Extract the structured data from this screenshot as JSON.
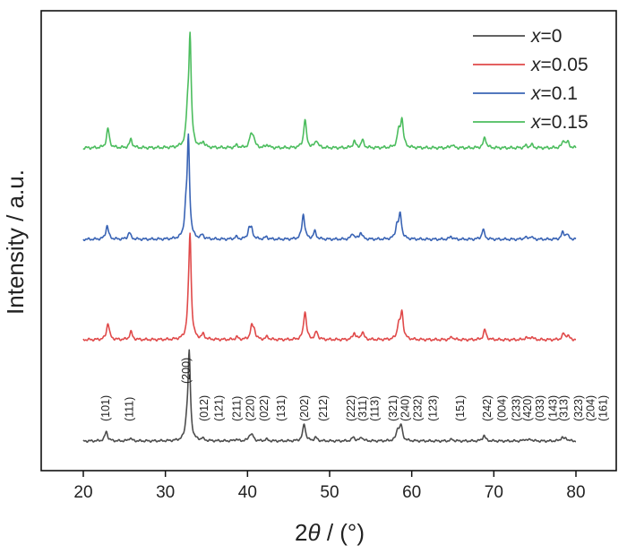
{
  "chart_data": {
    "type": "line",
    "xlabel": "2θ / (°)",
    "ylabel": "Intensity / a.u.",
    "xlim": [
      15,
      82
    ],
    "xticks": [
      20,
      30,
      40,
      50,
      60,
      70,
      80
    ],
    "x_tick_labels": [
      "20",
      "30",
      "40",
      "50",
      "60",
      "70",
      "80"
    ],
    "legend_position": "top-right",
    "grid": false,
    "series": [
      {
        "name": "x=0",
        "legend_var": "x",
        "legend_value": "=0",
        "color": "#4d4d4d",
        "offset": 0,
        "peaks": [
          {
            "x": 22.8,
            "y": 0.11
          },
          {
            "x": 25.7,
            "y": 0.035
          },
          {
            "x": 32.6,
            "y": 0.17
          },
          {
            "x": 32.9,
            "y": 1.0
          },
          {
            "x": 34.5,
            "y": 0.025
          },
          {
            "x": 38.6,
            "y": 0.02
          },
          {
            "x": 40.3,
            "y": 0.065
          },
          {
            "x": 40.6,
            "y": 0.05
          },
          {
            "x": 42.3,
            "y": 0.02
          },
          {
            "x": 46.9,
            "y": 0.2
          },
          {
            "x": 48.3,
            "y": 0.04
          },
          {
            "x": 52.9,
            "y": 0.045
          },
          {
            "x": 53.9,
            "y": 0.045
          },
          {
            "x": 58.3,
            "y": 0.13
          },
          {
            "x": 58.7,
            "y": 0.17
          },
          {
            "x": 64.9,
            "y": 0.02
          },
          {
            "x": 68.8,
            "y": 0.065
          },
          {
            "x": 73.8,
            "y": 0.02
          },
          {
            "x": 74.5,
            "y": 0.02
          },
          {
            "x": 78.3,
            "y": 0.04
          },
          {
            "x": 78.8,
            "y": 0.03
          }
        ]
      },
      {
        "name": "x=0.05",
        "legend_var": "x",
        "legend_value": "=0.05",
        "color": "#e04a4a",
        "offset": 1,
        "peaks": [
          {
            "x": 23.0,
            "y": 0.17
          },
          {
            "x": 25.8,
            "y": 0.08
          },
          {
            "x": 32.8,
            "y": 0.17
          },
          {
            "x": 33.0,
            "y": 1.0
          },
          {
            "x": 34.6,
            "y": 0.05
          },
          {
            "x": 38.7,
            "y": 0.025
          },
          {
            "x": 40.5,
            "y": 0.12
          },
          {
            "x": 40.8,
            "y": 0.09
          },
          {
            "x": 42.4,
            "y": 0.03
          },
          {
            "x": 47.0,
            "y": 0.29
          },
          {
            "x": 48.4,
            "y": 0.08
          },
          {
            "x": 53.0,
            "y": 0.07
          },
          {
            "x": 54.0,
            "y": 0.08
          },
          {
            "x": 58.4,
            "y": 0.14
          },
          {
            "x": 58.8,
            "y": 0.27
          },
          {
            "x": 64.9,
            "y": 0.03
          },
          {
            "x": 68.9,
            "y": 0.1
          },
          {
            "x": 73.9,
            "y": 0.02
          },
          {
            "x": 74.6,
            "y": 0.03
          },
          {
            "x": 78.5,
            "y": 0.06
          },
          {
            "x": 79.0,
            "y": 0.04
          }
        ]
      },
      {
        "name": "x=0.1",
        "legend_var": "x",
        "legend_value": "=0.1",
        "color": "#3a64b5",
        "offset": 2,
        "peaks": [
          {
            "x": 22.9,
            "y": 0.14
          },
          {
            "x": 25.6,
            "y": 0.07
          },
          {
            "x": 32.5,
            "y": 0.25
          },
          {
            "x": 32.8,
            "y": 1.0
          },
          {
            "x": 34.5,
            "y": 0.04
          },
          {
            "x": 38.6,
            "y": 0.025
          },
          {
            "x": 40.2,
            "y": 0.1
          },
          {
            "x": 40.5,
            "y": 0.09
          },
          {
            "x": 42.3,
            "y": 0.025
          },
          {
            "x": 46.8,
            "y": 0.26
          },
          {
            "x": 48.2,
            "y": 0.08
          },
          {
            "x": 52.8,
            "y": 0.06
          },
          {
            "x": 53.8,
            "y": 0.07
          },
          {
            "x": 58.2,
            "y": 0.13
          },
          {
            "x": 58.6,
            "y": 0.25
          },
          {
            "x": 64.8,
            "y": 0.03
          },
          {
            "x": 68.7,
            "y": 0.1
          },
          {
            "x": 73.8,
            "y": 0.02
          },
          {
            "x": 74.5,
            "y": 0.03
          },
          {
            "x": 78.4,
            "y": 0.07
          },
          {
            "x": 78.9,
            "y": 0.05
          }
        ]
      },
      {
        "name": "x=0.15",
        "legend_var": "x",
        "legend_value": "=0.15",
        "color": "#4cbd5e",
        "offset": 3,
        "peaks": [
          {
            "x": 23.0,
            "y": 0.18
          },
          {
            "x": 25.8,
            "y": 0.08
          },
          {
            "x": 32.7,
            "y": 0.28
          },
          {
            "x": 33.0,
            "y": 1.0
          },
          {
            "x": 34.6,
            "y": 0.05
          },
          {
            "x": 38.7,
            "y": 0.025
          },
          {
            "x": 40.4,
            "y": 0.1
          },
          {
            "x": 40.7,
            "y": 0.1
          },
          {
            "x": 42.4,
            "y": 0.03
          },
          {
            "x": 47.0,
            "y": 0.26
          },
          {
            "x": 48.4,
            "y": 0.07
          },
          {
            "x": 53.0,
            "y": 0.06
          },
          {
            "x": 54.0,
            "y": 0.07
          },
          {
            "x": 58.4,
            "y": 0.14
          },
          {
            "x": 58.8,
            "y": 0.26
          },
          {
            "x": 64.9,
            "y": 0.03
          },
          {
            "x": 68.9,
            "y": 0.1
          },
          {
            "x": 73.9,
            "y": 0.02
          },
          {
            "x": 74.6,
            "y": 0.03
          },
          {
            "x": 78.5,
            "y": 0.07
          },
          {
            "x": 79.0,
            "y": 0.05
          }
        ]
      }
    ],
    "annotations": [
      {
        "text": "(101)",
        "x": 22.8
      },
      {
        "text": "(111)",
        "x": 25.7
      },
      {
        "text": "(200)",
        "x": 32.6
      },
      {
        "text": "(012)",
        "x": 34.8
      },
      {
        "text": "(121)",
        "x": 36.6
      },
      {
        "text": "(211)",
        "x": 38.8
      },
      {
        "text": "(220)",
        "x": 40.4
      },
      {
        "text": "(022)",
        "x": 42.1
      },
      {
        "text": "(131)",
        "x": 44.2
      },
      {
        "text": "(202)",
        "x": 47.0
      },
      {
        "text": "(212)",
        "x": 49.3
      },
      {
        "text": "(222)",
        "x": 52.7
      },
      {
        "text": "(311)",
        "x": 54.1
      },
      {
        "text": "(113)",
        "x": 55.6
      },
      {
        "text": "(321)",
        "x": 57.8
      },
      {
        "text": "(240)",
        "x": 59.3
      },
      {
        "text": "(232)",
        "x": 60.8
      },
      {
        "text": "(123)",
        "x": 62.7
      },
      {
        "text": "(151)",
        "x": 66.0
      },
      {
        "text": "(242)",
        "x": 69.3
      },
      {
        "text": "(004)",
        "x": 71.1
      },
      {
        "text": "(233)",
        "x": 72.8
      },
      {
        "text": "(420)",
        "x": 74.2
      },
      {
        "text": "(033)",
        "x": 75.7
      },
      {
        "text": "(143)",
        "x": 77.3
      },
      {
        "text": "(313)",
        "x": 78.6
      },
      {
        "text": "(323)",
        "x": 80.4
      },
      {
        "text": "(204)",
        "x": 81.9
      },
      {
        "text": "(161)",
        "x": 83.4
      }
    ]
  }
}
